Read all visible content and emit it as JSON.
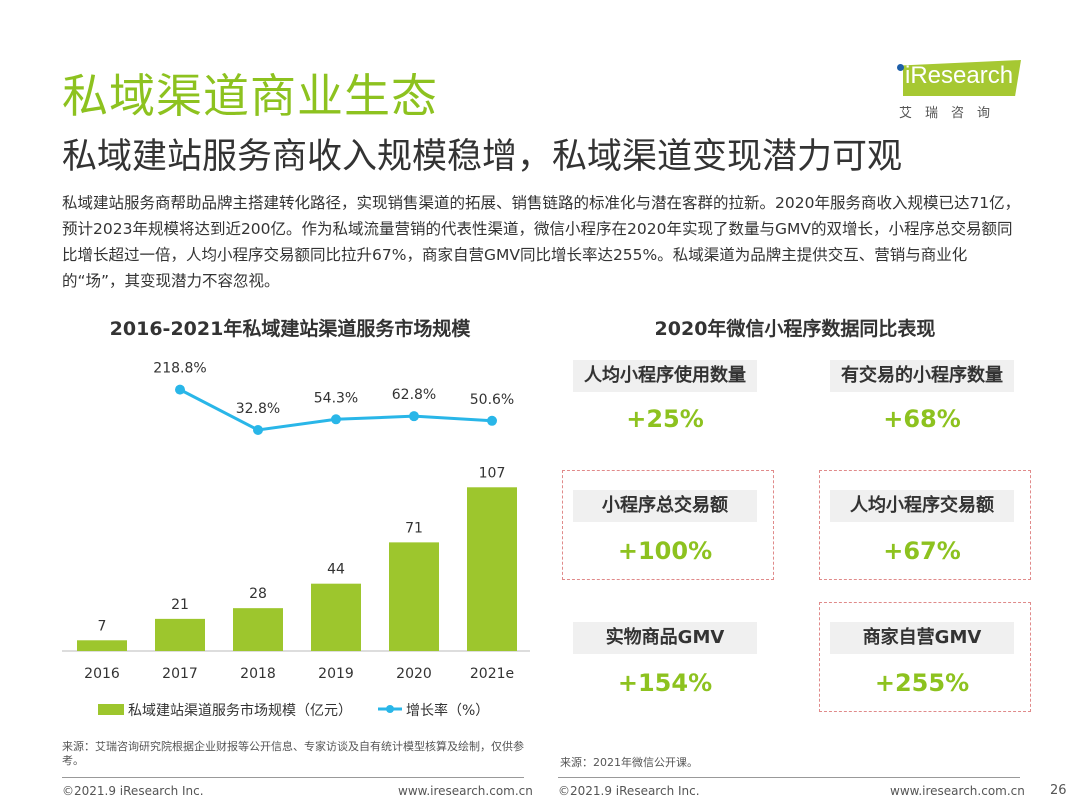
{
  "header": {
    "title": "私域渠道商业生态",
    "subtitle": "私域建站服务商收入规模稳增，私域渠道变现潜力可观",
    "logo": {
      "text": "iResearch",
      "cn": "艾瑞咨询",
      "brand_color": "#a6c832"
    }
  },
  "body": "私域建站服务商帮助品牌主搭建转化路径，实现销售渠道的拓展、销售链路的标准化与潜在客群的拉新。2020年服务商收入规模已达71亿，预计2023年规模将达到近200亿。作为私域流量营销的代表性渠道，微信小程序在2020年实现了数量与GMV的双增长，小程序总交易额同比增长超过一倍，人均小程序交易额同比拉升67%，商家自营GMV同比增长率达255%。私域渠道为品牌主提供交互、营销与商业化的“场”，其变现潜力不容忽视。",
  "chart_data": {
    "type": "bar+line",
    "title": "2016-2021年私域建站渠道服务市场规模",
    "categories": [
      "2016",
      "2017",
      "2018",
      "2019",
      "2020",
      "2021e"
    ],
    "series": [
      {
        "name": "私域建站渠道服务市场规模（亿元）",
        "type": "bar",
        "color": "#9dc62d",
        "values": [
          7,
          21,
          28,
          44,
          71,
          107
        ]
      },
      {
        "name": "增长率（%）",
        "type": "line",
        "color": "#29b6e8",
        "values": [
          null,
          218.8,
          32.8,
          54.3,
          62.8,
          50.6
        ],
        "labels": [
          "",
          "218.8%",
          "32.8%",
          "54.3%",
          "62.8%",
          "50.6%"
        ]
      }
    ],
    "legend": "bottom",
    "grid": false
  },
  "panel": {
    "title": "2020年微信小程序数据同比表现",
    "items": [
      {
        "label": "人均小程序使用数量",
        "value": "+25%",
        "highlight": false
      },
      {
        "label": "有交易的小程序数量",
        "value": "+68%",
        "highlight": false
      },
      {
        "label": "小程序总交易额",
        "value": "+100%",
        "highlight": true
      },
      {
        "label": "人均小程序交易额",
        "value": "+67%",
        "highlight": true
      },
      {
        "label": "实物商品GMV",
        "value": "+154%",
        "highlight": false
      },
      {
        "label": "商家自营GMV",
        "value": "+255%",
        "highlight": true
      }
    ],
    "value_color": "#8dc21f"
  },
  "sources": {
    "left": "来源：艾瑞咨询研究院根据企业财报等公开信息、专家访谈及自有统计模型核算及绘制，仅供参考。",
    "right": "来源：2021年微信公开课。"
  },
  "footer": {
    "copyright_left": "©2021.9 iResearch Inc.",
    "url_left": "www.iresearch.com.cn",
    "copyright_right": "©2021.9 iResearch Inc.",
    "url_right": "www.iresearch.com.cn",
    "page": "26"
  }
}
